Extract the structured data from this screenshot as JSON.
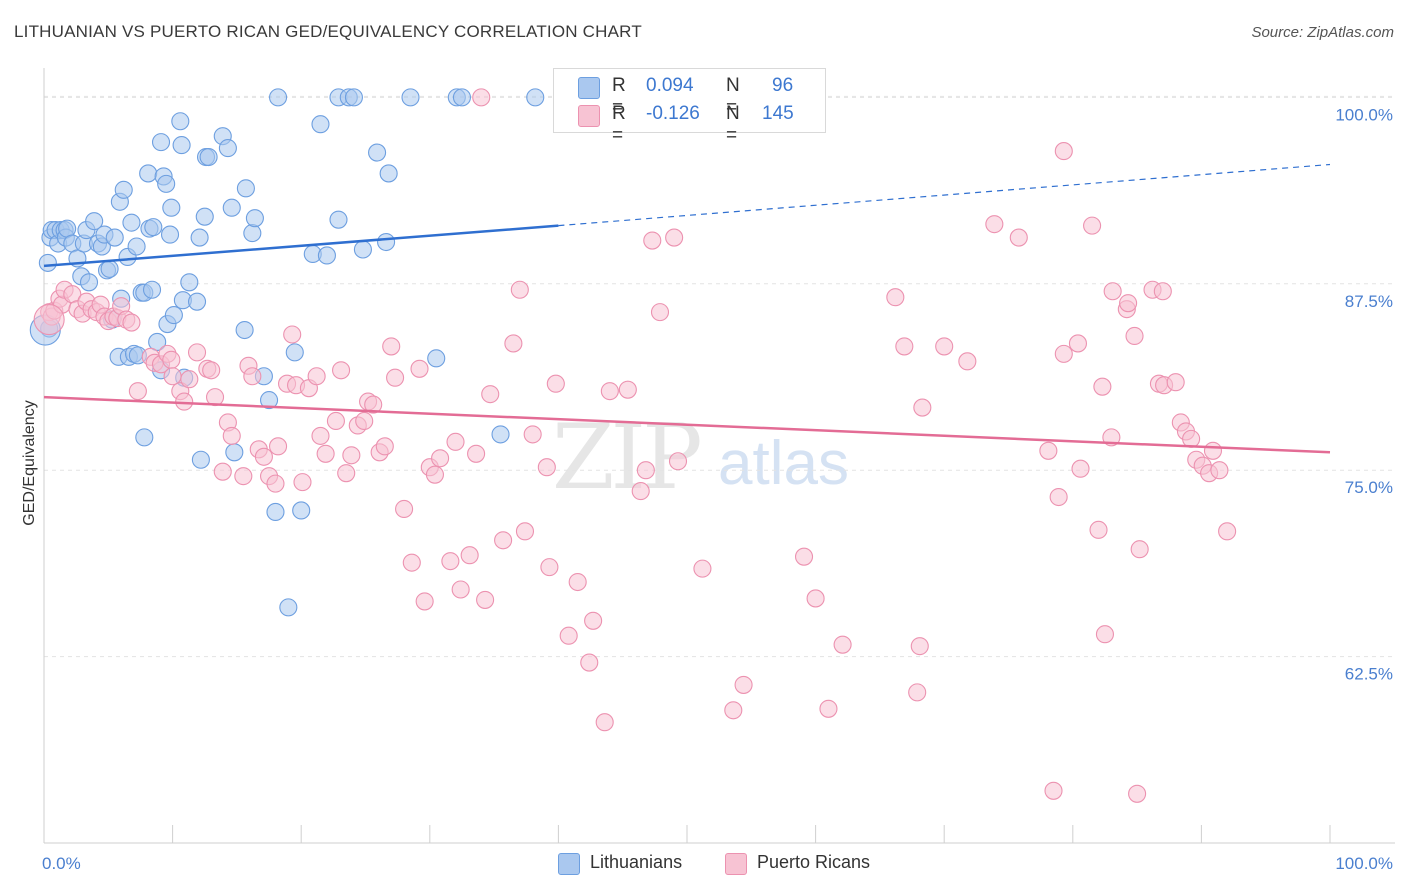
{
  "title": "LITHUANIAN VS PUERTO RICAN GED/EQUIVALENCY CORRELATION CHART",
  "source": "Source: ZipAtlas.com",
  "watermark": {
    "zip": "ZIP",
    "atlas": "atlas"
  },
  "legend": {
    "rows": [
      {
        "r_label": "R =",
        "r_value": "0.094",
        "n_label": "N =",
        "n_value": "96"
      },
      {
        "r_label": "R =",
        "r_value": "-0.126",
        "n_label": "N =",
        "n_value": "145"
      }
    ]
  },
  "bottom_legend": [
    "Lithuanians",
    "Puerto Ricans"
  ],
  "colors": {
    "blue_fill": "#aac8ef",
    "blue_stroke": "#6d9fe0",
    "blue_line": "#2f6fd0",
    "pink_fill": "#f7c3d3",
    "pink_stroke": "#ec92b0",
    "pink_line": "#e36c95",
    "grid": "#e3e3e3",
    "tick_text": "#4a7fcf"
  },
  "chart_data": {
    "type": "scatter",
    "title": "LITHUANIAN VS PUERTO RICAN GED/EQUIVALENCY CORRELATION CHART",
    "xlabel": "",
    "ylabel": "GED/Equivalency",
    "xlim": [
      0,
      100
    ],
    "ylim": [
      50,
      100
    ],
    "x_tick_labels": [
      "0.0%",
      "100.0%"
    ],
    "y_ticks": [
      62.5,
      75.0,
      87.5,
      100.0
    ],
    "y_tick_labels": [
      "62.5%",
      "75.0%",
      "87.5%",
      "100.0%"
    ],
    "grid": true,
    "series": [
      {
        "name": "Lithuanians",
        "R": 0.094,
        "N": 96,
        "trend": {
          "x0": 0,
          "y0": 88.7,
          "x1": 40,
          "y1": 91.4,
          "dash_to_x": 100,
          "dash_to_y": 95.5
        },
        "points": [
          [
            0.3,
            88.9
          ],
          [
            0.4,
            84.5
          ],
          [
            0.5,
            90.6
          ],
          [
            0.6,
            91.1
          ],
          [
            0.9,
            91.1
          ],
          [
            1.1,
            90.2
          ],
          [
            1.3,
            91.1
          ],
          [
            1.6,
            91.1
          ],
          [
            1.7,
            90.6
          ],
          [
            1.8,
            91.2
          ],
          [
            2.2,
            90.2
          ],
          [
            2.6,
            89.2
          ],
          [
            2.9,
            88.0
          ],
          [
            3.1,
            90.2
          ],
          [
            3.3,
            91.1
          ],
          [
            3.5,
            87.6
          ],
          [
            3.9,
            91.7
          ],
          [
            4.2,
            90.2
          ],
          [
            4.5,
            90.0
          ],
          [
            4.7,
            90.8
          ],
          [
            4.9,
            88.4
          ],
          [
            5.1,
            88.5
          ],
          [
            5.3,
            85.1
          ],
          [
            5.5,
            90.6
          ],
          [
            5.8,
            82.6
          ],
          [
            5.9,
            93.0
          ],
          [
            6.0,
            86.5
          ],
          [
            6.2,
            93.8
          ],
          [
            6.5,
            89.3
          ],
          [
            6.6,
            82.6
          ],
          [
            6.8,
            91.6
          ],
          [
            7.0,
            82.8
          ],
          [
            7.2,
            90.0
          ],
          [
            7.3,
            82.7
          ],
          [
            7.6,
            86.9
          ],
          [
            7.8,
            86.9
          ],
          [
            7.8,
            77.2
          ],
          [
            8.1,
            94.9
          ],
          [
            8.2,
            91.2
          ],
          [
            8.4,
            87.1
          ],
          [
            8.5,
            91.3
          ],
          [
            8.8,
            83.6
          ],
          [
            9.1,
            81.7
          ],
          [
            9.1,
            97.0
          ],
          [
            9.3,
            94.7
          ],
          [
            9.5,
            94.2
          ],
          [
            9.6,
            84.8
          ],
          [
            9.8,
            90.8
          ],
          [
            9.9,
            92.6
          ],
          [
            10.1,
            85.4
          ],
          [
            10.6,
            98.4
          ],
          [
            10.7,
            96.8
          ],
          [
            10.8,
            86.4
          ],
          [
            10.9,
            81.2
          ],
          [
            11.3,
            87.6
          ],
          [
            11.9,
            86.3
          ],
          [
            12.1,
            90.6
          ],
          [
            12.2,
            75.7
          ],
          [
            12.5,
            92.0
          ],
          [
            12.6,
            96.0
          ],
          [
            12.8,
            96.0
          ],
          [
            13.9,
            97.4
          ],
          [
            14.3,
            96.6
          ],
          [
            14.6,
            92.6
          ],
          [
            14.8,
            76.2
          ],
          [
            15.6,
            84.4
          ],
          [
            15.7,
            93.9
          ],
          [
            16.2,
            90.9
          ],
          [
            16.4,
            91.9
          ],
          [
            17.1,
            81.3
          ],
          [
            17.5,
            79.7
          ],
          [
            18.0,
            72.2
          ],
          [
            18.2,
            100.0
          ],
          [
            19.0,
            65.8
          ],
          [
            19.5,
            82.9
          ],
          [
            20.0,
            72.3
          ],
          [
            20.9,
            89.5
          ],
          [
            21.5,
            98.2
          ],
          [
            22.0,
            89.4
          ],
          [
            22.9,
            91.8
          ],
          [
            22.9,
            100.0
          ],
          [
            23.7,
            100.0
          ],
          [
            24.1,
            100.0
          ],
          [
            24.8,
            89.8
          ],
          [
            25.9,
            96.3
          ],
          [
            26.6,
            90.3
          ],
          [
            26.8,
            94.9
          ],
          [
            28.5,
            100.0
          ],
          [
            30.5,
            82.5
          ],
          [
            32.1,
            100.0
          ],
          [
            32.5,
            100.0
          ],
          [
            35.5,
            77.4
          ],
          [
            38.2,
            100.0
          ]
        ],
        "big_points": [
          [
            0.1,
            84.4
          ]
        ]
      },
      {
        "name": "Puerto Ricans",
        "R": -0.126,
        "N": 145,
        "trend": {
          "x0": 0,
          "y0": 79.9,
          "x1": 100,
          "y1": 76.2
        },
        "points": [
          [
            0.4,
            85.6
          ],
          [
            0.6,
            85.3
          ],
          [
            0.8,
            85.7
          ],
          [
            1.2,
            86.5
          ],
          [
            1.4,
            86.1
          ],
          [
            1.6,
            87.1
          ],
          [
            2.2,
            86.8
          ],
          [
            2.6,
            85.8
          ],
          [
            3.0,
            85.5
          ],
          [
            3.3,
            86.3
          ],
          [
            3.7,
            85.8
          ],
          [
            4.1,
            85.6
          ],
          [
            4.4,
            86.1
          ],
          [
            4.7,
            85.3
          ],
          [
            5.0,
            85.0
          ],
          [
            5.4,
            85.3
          ],
          [
            5.7,
            85.2
          ],
          [
            6.0,
            86.0
          ],
          [
            6.4,
            85.1
          ],
          [
            6.8,
            84.9
          ],
          [
            7.3,
            80.3
          ],
          [
            8.3,
            82.6
          ],
          [
            8.6,
            82.2
          ],
          [
            9.1,
            82.1
          ],
          [
            9.6,
            82.8
          ],
          [
            9.9,
            82.4
          ],
          [
            10.0,
            81.3
          ],
          [
            10.6,
            80.3
          ],
          [
            10.9,
            79.6
          ],
          [
            11.3,
            81.1
          ],
          [
            11.9,
            82.9
          ],
          [
            12.7,
            81.8
          ],
          [
            13.0,
            81.7
          ],
          [
            13.3,
            79.9
          ],
          [
            13.9,
            74.9
          ],
          [
            14.3,
            78.2
          ],
          [
            14.6,
            77.3
          ],
          [
            15.5,
            74.6
          ],
          [
            15.9,
            82.0
          ],
          [
            16.2,
            81.3
          ],
          [
            16.7,
            76.4
          ],
          [
            17.1,
            75.9
          ],
          [
            17.5,
            74.6
          ],
          [
            18.0,
            74.1
          ],
          [
            18.2,
            76.6
          ],
          [
            18.9,
            80.8
          ],
          [
            19.3,
            84.1
          ],
          [
            19.6,
            80.7
          ],
          [
            20.1,
            74.2
          ],
          [
            20.6,
            80.5
          ],
          [
            21.2,
            81.3
          ],
          [
            21.5,
            77.3
          ],
          [
            21.9,
            76.1
          ],
          [
            22.7,
            78.3
          ],
          [
            23.1,
            81.7
          ],
          [
            23.5,
            74.8
          ],
          [
            23.9,
            76.0
          ],
          [
            24.4,
            78.0
          ],
          [
            24.9,
            78.3
          ],
          [
            25.2,
            79.6
          ],
          [
            25.6,
            79.4
          ],
          [
            26.1,
            76.2
          ],
          [
            26.5,
            76.6
          ],
          [
            27.0,
            83.3
          ],
          [
            27.3,
            81.2
          ],
          [
            28.0,
            72.4
          ],
          [
            28.6,
            68.8
          ],
          [
            29.2,
            81.8
          ],
          [
            29.6,
            66.2
          ],
          [
            30.0,
            75.2
          ],
          [
            30.4,
            74.7
          ],
          [
            30.8,
            75.8
          ],
          [
            31.6,
            68.9
          ],
          [
            32.0,
            76.9
          ],
          [
            32.4,
            67.0
          ],
          [
            33.1,
            69.3
          ],
          [
            33.6,
            76.1
          ],
          [
            34.3,
            66.3
          ],
          [
            34.7,
            80.1
          ],
          [
            35.7,
            70.3
          ],
          [
            36.5,
            83.5
          ],
          [
            37.0,
            87.1
          ],
          [
            37.4,
            70.9
          ],
          [
            38.0,
            77.4
          ],
          [
            39.1,
            75.2
          ],
          [
            39.3,
            68.5
          ],
          [
            39.8,
            80.8
          ],
          [
            40.8,
            63.9
          ],
          [
            41.5,
            67.5
          ],
          [
            42.4,
            62.1
          ],
          [
            42.7,
            64.9
          ],
          [
            43.6,
            58.1
          ],
          [
            44.0,
            80.3
          ],
          [
            45.4,
            80.4
          ],
          [
            46.4,
            73.6
          ],
          [
            46.8,
            75.0
          ],
          [
            47.3,
            90.4
          ],
          [
            47.9,
            85.6
          ],
          [
            49.3,
            75.6
          ],
          [
            49.0,
            90.6
          ],
          [
            51.2,
            68.4
          ],
          [
            53.6,
            58.9
          ],
          [
            54.4,
            60.6
          ],
          [
            55.2,
            100.0
          ],
          [
            55.8,
            100.0
          ],
          [
            59.1,
            69.2
          ],
          [
            60.0,
            66.4
          ],
          [
            61.0,
            59.0
          ],
          [
            62.1,
            63.3
          ],
          [
            66.2,
            86.6
          ],
          [
            66.9,
            83.3
          ],
          [
            67.9,
            60.1
          ],
          [
            68.1,
            63.2
          ],
          [
            68.3,
            79.2
          ],
          [
            70.0,
            83.3
          ],
          [
            71.8,
            82.3
          ],
          [
            73.9,
            91.5
          ],
          [
            75.8,
            90.6
          ],
          [
            78.1,
            76.3
          ],
          [
            78.9,
            73.2
          ],
          [
            78.5,
            53.5
          ],
          [
            79.3,
            96.4
          ],
          [
            79.3,
            82.8
          ],
          [
            80.4,
            83.5
          ],
          [
            80.6,
            75.1
          ],
          [
            81.5,
            91.4
          ],
          [
            82.0,
            71.0
          ],
          [
            82.3,
            80.6
          ],
          [
            82.5,
            64.0
          ],
          [
            83.0,
            77.2
          ],
          [
            83.1,
            87.0
          ],
          [
            84.2,
            85.8
          ],
          [
            84.3,
            86.2
          ],
          [
            84.8,
            84.0
          ],
          [
            85.0,
            53.3
          ],
          [
            85.2,
            69.7
          ],
          [
            86.2,
            87.1
          ],
          [
            86.7,
            80.8
          ],
          [
            87.0,
            87.0
          ],
          [
            87.1,
            80.7
          ],
          [
            88.0,
            80.9
          ],
          [
            88.4,
            78.2
          ],
          [
            88.8,
            77.6
          ],
          [
            89.2,
            77.1
          ],
          [
            89.6,
            75.7
          ],
          [
            90.1,
            75.3
          ],
          [
            90.6,
            74.8
          ],
          [
            90.9,
            76.3
          ],
          [
            91.4,
            75.0
          ],
          [
            92.0,
            70.9
          ],
          [
            34.0,
            100.0
          ]
        ],
        "big_points": [
          [
            0.4,
            85.1
          ]
        ]
      }
    ]
  }
}
